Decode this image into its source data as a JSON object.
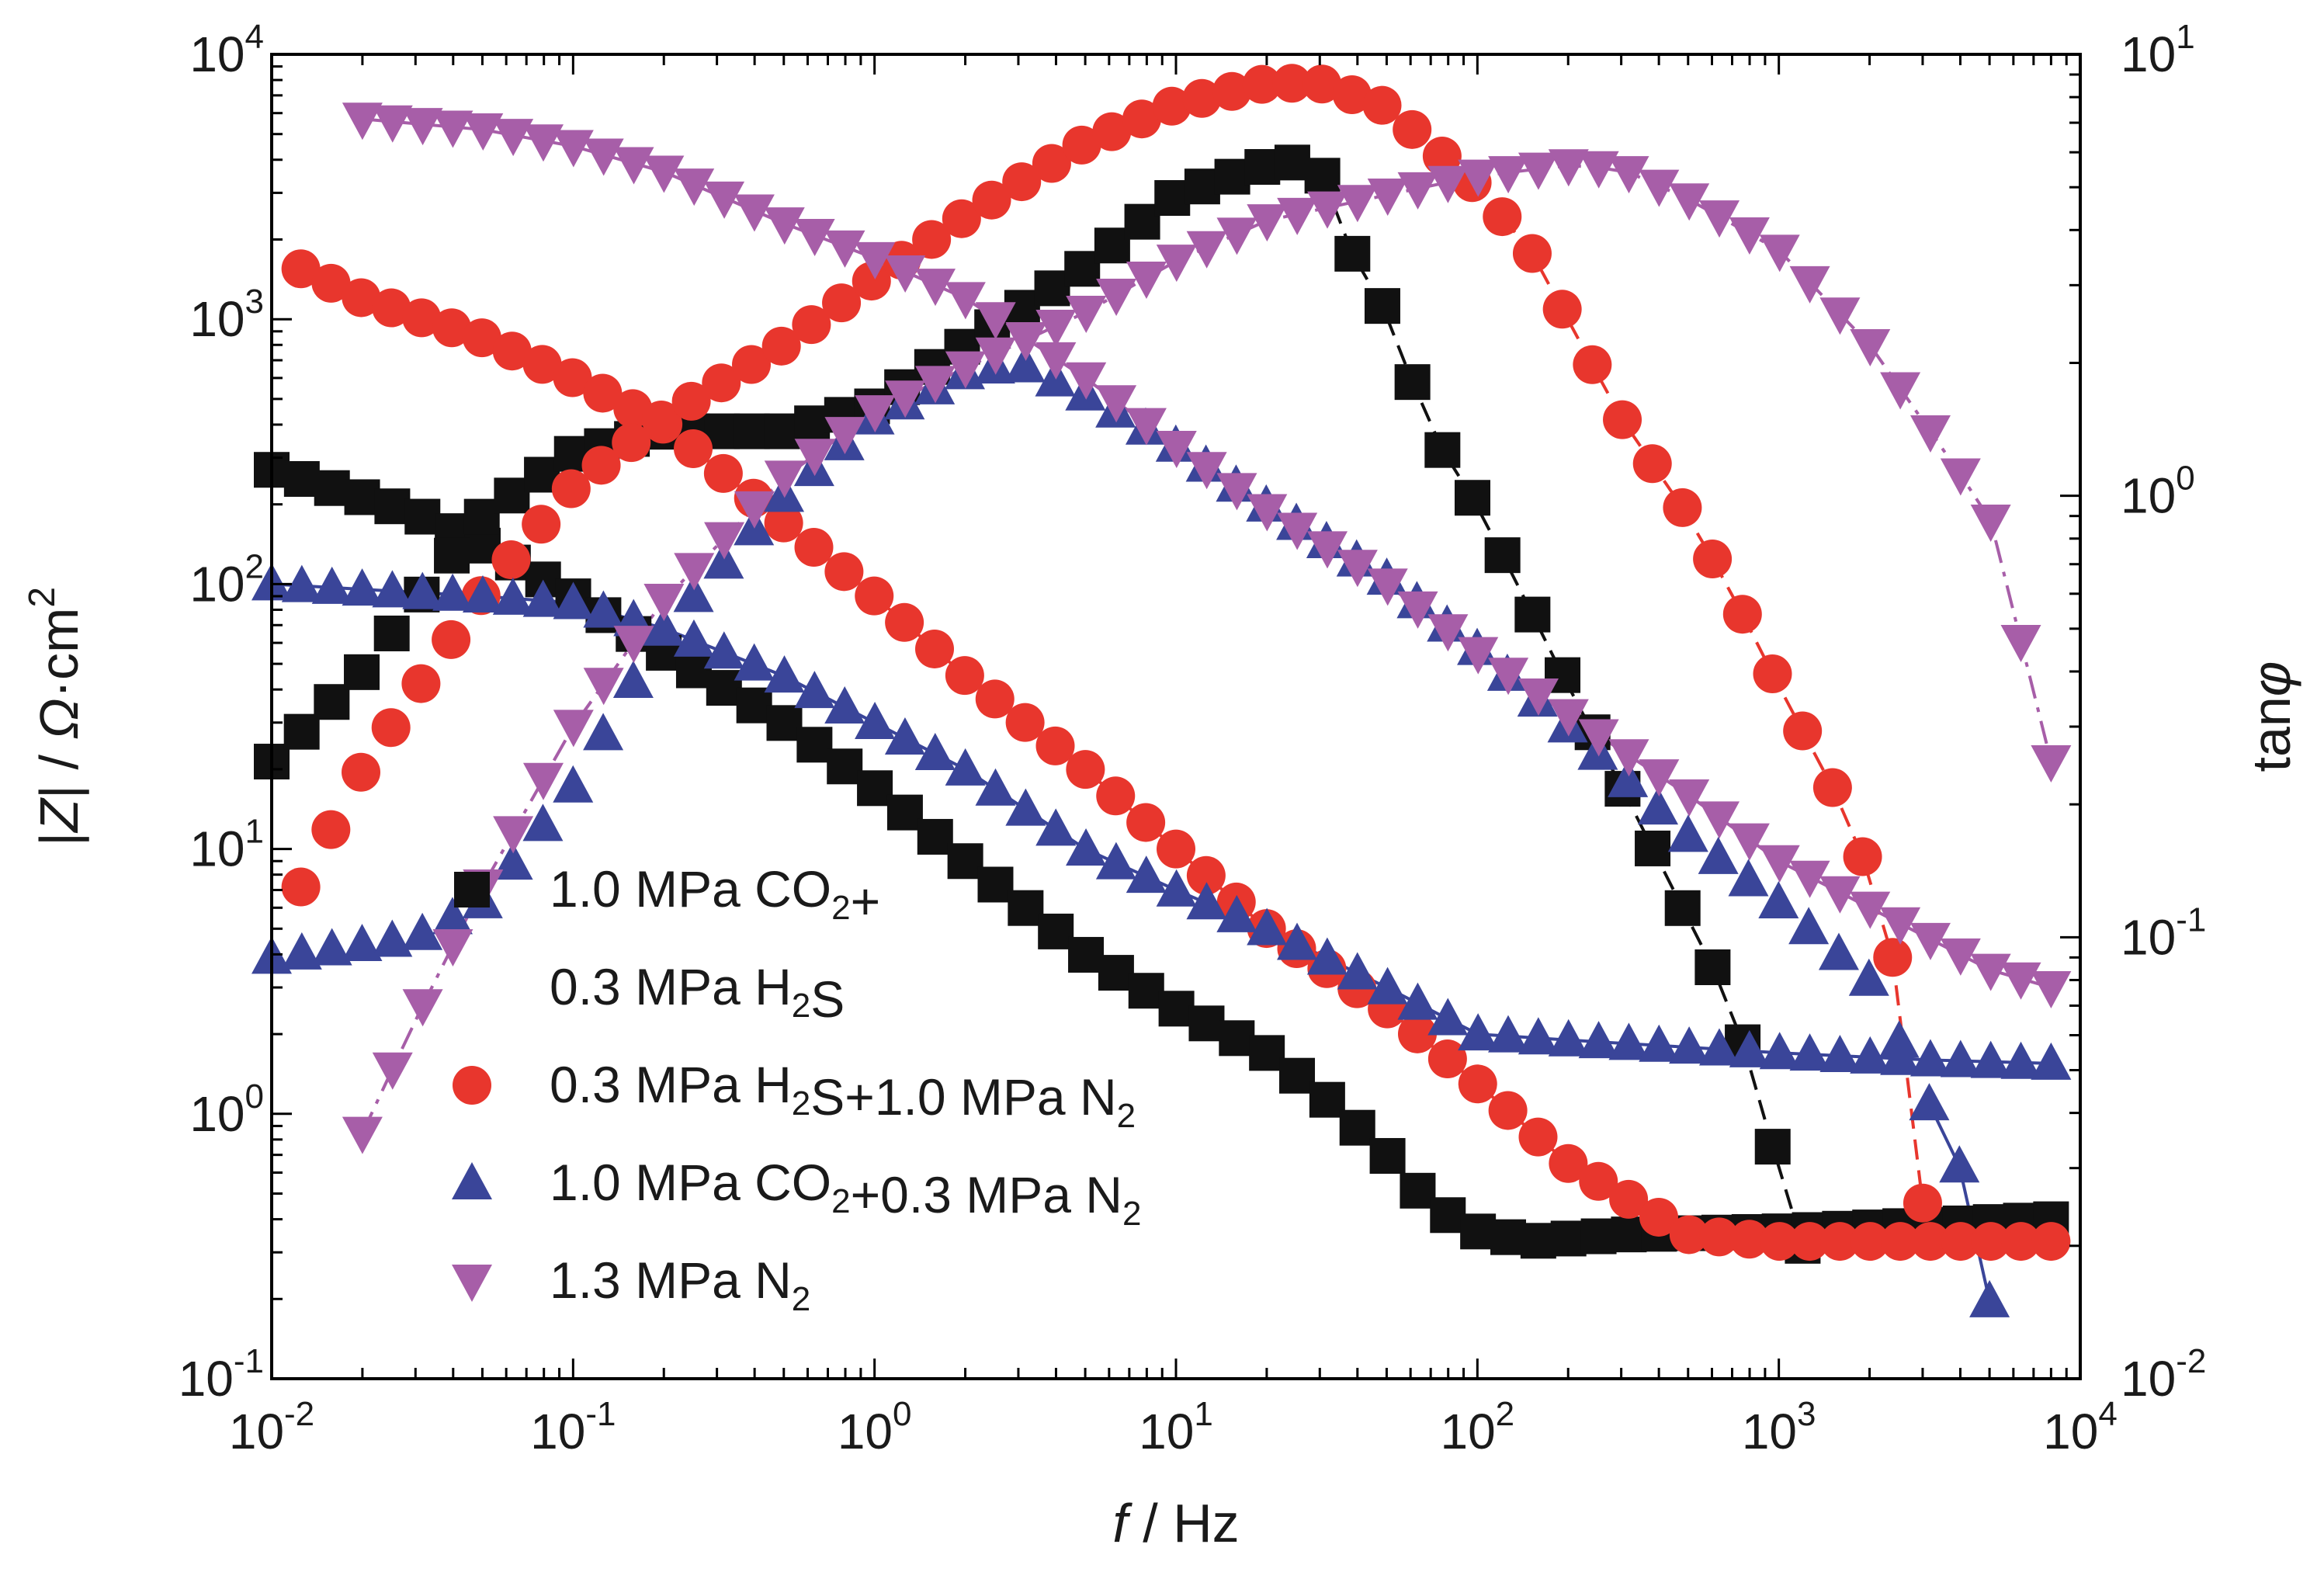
{
  "chart_data": {
    "type": "scatter",
    "x_axis": {
      "label_italic": "f",
      "label_rest": " / Hz",
      "scale": "log",
      "range": [
        0.01,
        10000
      ],
      "ticks": [
        {
          "b": "10",
          "e": "-2"
        },
        {
          "b": "10",
          "e": "-1"
        },
        {
          "b": "10",
          "e": "0"
        },
        {
          "b": "10",
          "e": "1"
        },
        {
          "b": "10",
          "e": "2"
        },
        {
          "b": "10",
          "e": "3"
        },
        {
          "b": "10",
          "e": "4"
        }
      ]
    },
    "y_left": {
      "label": "|Z| / Ω·cm²",
      "label_parts": [
        "|",
        "Z",
        "| / ",
        "Ω",
        "·cm",
        "2"
      ],
      "scale": "log",
      "range": [
        0.1,
        10000
      ],
      "ticks": [
        {
          "b": "10",
          "e": "-1"
        },
        {
          "b": "10",
          "e": "0"
        },
        {
          "b": "10",
          "e": "1"
        },
        {
          "b": "10",
          "e": "2"
        },
        {
          "b": "10",
          "e": "3"
        },
        {
          "b": "10",
          "e": "4"
        }
      ]
    },
    "y_right": {
      "label_parts": [
        "tan",
        "φ"
      ],
      "scale": "log",
      "range": [
        0.01,
        10
      ],
      "ticks": [
        {
          "b": "10",
          "e": "-2"
        },
        {
          "b": "10",
          "e": "-1"
        },
        {
          "b": "10",
          "e": "0"
        },
        {
          "b": "10",
          "e": "1"
        }
      ]
    },
    "grid": false,
    "legend_placement": "bottom-left",
    "legend": [
      {
        "marker": "square",
        "lines": [
          [
            {
              "t": "1.0 MPa CO"
            },
            {
              "t": "2",
              "sub": true
            },
            {
              "t": "+"
            }
          ],
          [
            {
              "t": "0.3 MPa H"
            },
            {
              "t": "2",
              "sub": true
            },
            {
              "t": "S"
            }
          ]
        ]
      },
      {
        "marker": "circle",
        "lines": [
          [
            {
              "t": "0.3 MPa H"
            },
            {
              "t": "2",
              "sub": true
            },
            {
              "t": "S+1.0 MPa N"
            },
            {
              "t": "2",
              "sub": true
            }
          ]
        ]
      },
      {
        "marker": "triangle-up",
        "lines": [
          [
            {
              "t": "1.0 MPa CO"
            },
            {
              "t": "2",
              "sub": true
            },
            {
              "t": "+0.3 MPa N"
            },
            {
              "t": "2",
              "sub": true
            }
          ]
        ]
      },
      {
        "marker": "triangle-down",
        "lines": [
          [
            {
              "t": "1.3 MPa N"
            },
            {
              "t": "2",
              "sub": true
            }
          ]
        ]
      }
    ],
    "series": [
      {
        "id": "co2-h2s",
        "marker": "square",
        "color": "#111111",
        "modulus": {
          "f_range": [
            0.01,
            8000
          ],
          "points_per_decade": 10,
          "anchors": [
            [
              0.01,
              270
            ],
            [
              0.03,
              185
            ],
            [
              0.05,
              140
            ],
            [
              0.1,
              90
            ],
            [
              0.2,
              55
            ],
            [
              0.5,
              30
            ],
            [
              1,
              17
            ],
            [
              2,
              9
            ],
            [
              5,
              4
            ],
            [
              10,
              2.5
            ],
            [
              20,
              1.7
            ],
            [
              30,
              1.2
            ],
            [
              50,
              0.7
            ],
            [
              70,
              0.45
            ],
            [
              100,
              0.36
            ],
            [
              150,
              0.33
            ],
            [
              300,
              0.35
            ],
            [
              1000,
              0.36
            ],
            [
              3000,
              0.38
            ],
            [
              8000,
              0.4
            ]
          ]
        },
        "phase": {
          "f_range": [
            0.01,
            1200
          ],
          "points_per_decade": 10,
          "line_from": 30,
          "line_style": "dash",
          "anchors": [
            [
              0.01,
              0.25
            ],
            [
              0.02,
              0.4
            ],
            [
              0.05,
              0.9
            ],
            [
              0.1,
              1.25
            ],
            [
              0.2,
              1.4
            ],
            [
              0.5,
              1.4
            ],
            [
              1,
              1.6
            ],
            [
              2,
              2.2
            ],
            [
              5,
              3.3
            ],
            [
              10,
              4.8
            ],
            [
              20,
              5.6
            ],
            [
              25,
              5.7
            ],
            [
              30,
              5.5
            ],
            [
              40,
              3.3
            ],
            [
              50,
              2.6
            ],
            [
              70,
              1.4
            ],
            [
              100,
              0.95
            ],
            [
              150,
              0.55
            ],
            [
              200,
              0.37
            ],
            [
              300,
              0.22
            ],
            [
              500,
              0.11
            ],
            [
              700,
              0.07
            ],
            [
              1000,
              0.03
            ],
            [
              1200,
              0.02
            ]
          ]
        }
      },
      {
        "id": "h2s-n2",
        "marker": "circle",
        "color": "#e8362d",
        "modulus": {
          "f_range": [
            0.0125,
            8000
          ],
          "points_per_decade": 10,
          "anchors": [
            [
              0.0125,
              1550
            ],
            [
              0.02,
              1200
            ],
            [
              0.05,
              850
            ],
            [
              0.1,
              600
            ],
            [
              0.2,
              400
            ],
            [
              0.5,
              170
            ],
            [
              1,
              90
            ],
            [
              2,
              45
            ],
            [
              5,
              20
            ],
            [
              10,
              10
            ],
            [
              20,
              5
            ],
            [
              50,
              2.5
            ],
            [
              100,
              1.3
            ],
            [
              200,
              0.65
            ],
            [
              500,
              0.35
            ],
            [
              1000,
              0.33
            ],
            [
              8000,
              0.33
            ]
          ]
        },
        "phase": {
          "f_range": [
            0.0125,
            3000
          ],
          "points_per_decade": 10,
          "line_from": 100,
          "line_style": "dash",
          "anchors": [
            [
              0.0125,
              0.13
            ],
            [
              0.02,
              0.24
            ],
            [
              0.05,
              0.6
            ],
            [
              0.1,
              1.05
            ],
            [
              0.2,
              1.5
            ],
            [
              0.5,
              2.2
            ],
            [
              1,
              3.1
            ],
            [
              2,
              4.3
            ],
            [
              5,
              6.3
            ],
            [
              10,
              7.7
            ],
            [
              20,
              8.6
            ],
            [
              30,
              8.6
            ],
            [
              50,
              7.6
            ],
            [
              70,
              6.2
            ],
            [
              100,
              5
            ],
            [
              150,
              3.6
            ],
            [
              200,
              2.5
            ],
            [
              300,
              1.5
            ],
            [
              500,
              0.9
            ],
            [
              700,
              0.6
            ],
            [
              1000,
              0.37
            ],
            [
              1500,
              0.22
            ],
            [
              2000,
              0.14
            ],
            [
              2500,
              0.08
            ],
            [
              3000,
              0.025
            ]
          ]
        }
      },
      {
        "id": "co2-n2",
        "marker": "triangle-up",
        "color": "#3a4599",
        "modulus": {
          "f_range": [
            0.01,
            8000
          ],
          "points_per_decade": 10,
          "anchors": [
            [
              0.01,
              100
            ],
            [
              0.05,
              90
            ],
            [
              0.1,
              85
            ],
            [
              0.2,
              68
            ],
            [
              0.5,
              45
            ],
            [
              1,
              30
            ],
            [
              2,
              20
            ],
            [
              5,
              10
            ],
            [
              10,
              7
            ],
            [
              20,
              5
            ],
            [
              50,
              3
            ],
            [
              100,
              2
            ],
            [
              200,
              1.9
            ],
            [
              1000,
              1.7
            ],
            [
              3000,
              1.6
            ],
            [
              8000,
              1.55
            ]
          ]
        },
        "phase": {
          "f_range": [
            0.01,
            5000
          ],
          "points_per_decade": 10,
          "line_from": 3000,
          "line_style": "solid",
          "anchors": [
            [
              0.01,
              0.09
            ],
            [
              0.03,
              0.1
            ],
            [
              0.05,
              0.12
            ],
            [
              0.1,
              0.22
            ],
            [
              0.2,
              0.5
            ],
            [
              0.5,
              1.0
            ],
            [
              1,
              1.5
            ],
            [
              2,
              1.9
            ],
            [
              3,
              2.0
            ],
            [
              5,
              1.7
            ],
            [
              10,
              1.3
            ],
            [
              20,
              0.95
            ],
            [
              50,
              0.65
            ],
            [
              100,
              0.45
            ],
            [
              200,
              0.3
            ],
            [
              500,
              0.17
            ],
            [
              1000,
              0.12
            ],
            [
              2000,
              0.08
            ],
            [
              3000,
              0.045
            ],
            [
              4000,
              0.03
            ],
            [
              5000,
              0.015
            ]
          ]
        }
      },
      {
        "id": "n2",
        "marker": "triangle-down",
        "color": "#a75ea8",
        "modulus": {
          "f_range": [
            0.02,
            8000
          ],
          "points_per_decade": 10,
          "anchors": [
            [
              0.02,
              5700
            ],
            [
              0.05,
              5200
            ],
            [
              0.1,
              4500
            ],
            [
              0.2,
              3600
            ],
            [
              0.5,
              2300
            ],
            [
              1,
              1700
            ],
            [
              2,
              1200
            ],
            [
              5,
              600
            ],
            [
              10,
              330
            ],
            [
              20,
              190
            ],
            [
              50,
              100
            ],
            [
              100,
              55
            ],
            [
              200,
              32
            ],
            [
              500,
              16
            ],
            [
              1000,
              9
            ],
            [
              2000,
              6
            ],
            [
              5000,
              3.5
            ],
            [
              8000,
              3
            ]
          ]
        },
        "phase": {
          "f_range": [
            0.02,
            8000
          ],
          "points_per_decade": 10,
          "line_from": 0.02,
          "line_style": "dashdot",
          "anchors": [
            [
              0.02,
              0.036
            ],
            [
              0.03,
              0.065
            ],
            [
              0.05,
              0.13
            ],
            [
              0.1,
              0.3
            ],
            [
              0.2,
              0.58
            ],
            [
              0.5,
              1.1
            ],
            [
              1,
              1.55
            ],
            [
              2,
              1.95
            ],
            [
              5,
              2.6
            ],
            [
              10,
              3.4
            ],
            [
              20,
              4.2
            ],
            [
              50,
              4.8
            ],
            [
              100,
              5.3
            ],
            [
              200,
              5.6
            ],
            [
              300,
              5.5
            ],
            [
              500,
              4.7
            ],
            [
              1000,
              3.6
            ],
            [
              2000,
              2.2
            ],
            [
              5000,
              0.9
            ],
            [
              8000,
              0.25
            ]
          ]
        }
      }
    ]
  }
}
